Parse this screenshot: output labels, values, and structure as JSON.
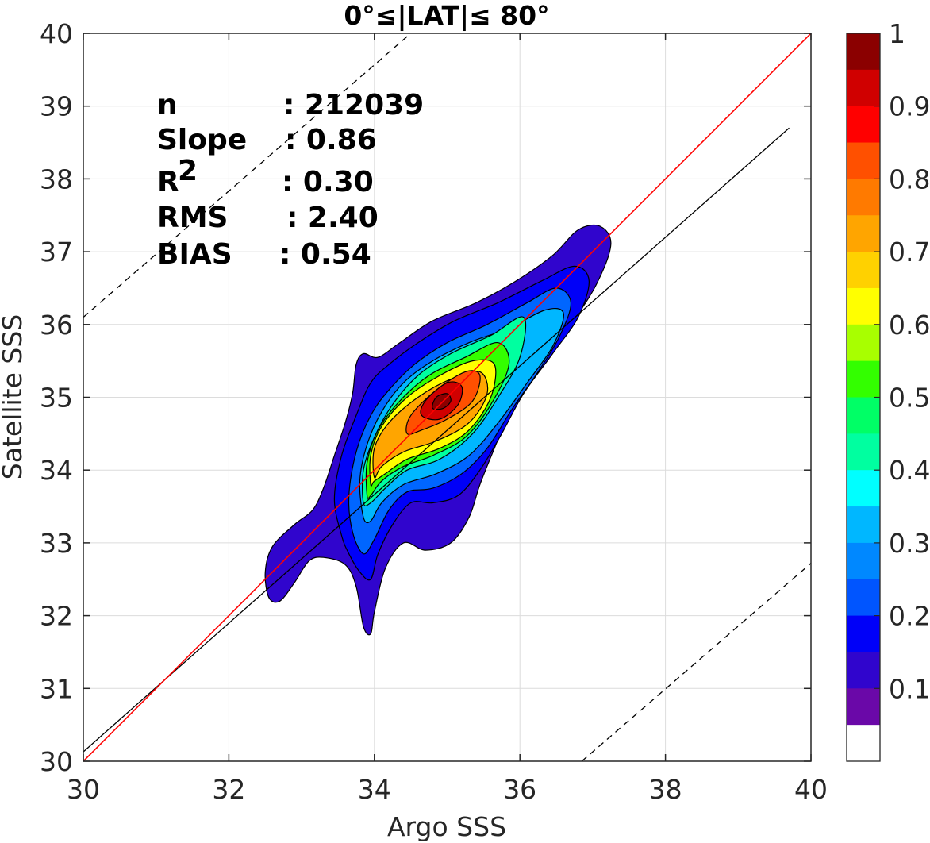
{
  "chart_data": {
    "type": "heatmap",
    "title": "0°≤|LAT|≤ 80°",
    "xlabel": "Argo SSS",
    "ylabel": "Satellite SSS",
    "xlim": [
      30,
      40
    ],
    "ylim": [
      30,
      40
    ],
    "xticks": [
      "30",
      "32",
      "34",
      "36",
      "38",
      "40"
    ],
    "yticks": [
      "30",
      "31",
      "32",
      "33",
      "34",
      "35",
      "36",
      "37",
      "38",
      "39",
      "40"
    ],
    "grid": true,
    "stats": [
      {
        "label": "n",
        "value": ": 212039"
      },
      {
        "label": "Slope",
        "value": ": 0.86"
      },
      {
        "label": "R",
        "sup": "2",
        "value": ": 0.30"
      },
      {
        "label": "RMS",
        "value": ": 2.40"
      },
      {
        "label": "BIAS",
        "value": ": 0.54"
      }
    ],
    "lines": {
      "one_to_one": {
        "color": "#ff0000",
        "points": [
          [
            30,
            30
          ],
          [
            40,
            40
          ]
        ]
      },
      "regression": {
        "color": "#000000",
        "points": [
          [
            30,
            30.13
          ],
          [
            39.7,
            38.7
          ]
        ]
      },
      "upper_dashed": {
        "color": "#000000",
        "points": [
          [
            30,
            36.1
          ],
          [
            34.5,
            40
          ]
        ]
      },
      "lower_dashed": {
        "color": "#000000",
        "points": [
          [
            36.85,
            30
          ],
          [
            40,
            32.72
          ]
        ]
      }
    },
    "density_contours": [
      {
        "level": 0.05,
        "color": "#3005cd",
        "points": [
          [
            32.7,
            32.2
          ],
          [
            32.55,
            32.25
          ],
          [
            32.5,
            32.6
          ],
          [
            32.6,
            32.95
          ],
          [
            32.9,
            33.25
          ],
          [
            33.15,
            33.45
          ],
          [
            33.3,
            33.75
          ],
          [
            33.45,
            34.2
          ],
          [
            33.6,
            34.65
          ],
          [
            33.7,
            35.05
          ],
          [
            33.75,
            35.45
          ],
          [
            33.85,
            35.6
          ],
          [
            34.05,
            35.55
          ],
          [
            34.35,
            35.75
          ],
          [
            34.8,
            36.05
          ],
          [
            35.4,
            36.3
          ],
          [
            35.95,
            36.6
          ],
          [
            36.45,
            36.95
          ],
          [
            36.8,
            37.3
          ],
          [
            37.1,
            37.35
          ],
          [
            37.25,
            37.1
          ],
          [
            37.05,
            36.55
          ],
          [
            36.7,
            36.0
          ],
          [
            36.3,
            35.45
          ],
          [
            35.9,
            34.9
          ],
          [
            35.65,
            34.3
          ],
          [
            35.45,
            33.8
          ],
          [
            35.3,
            33.35
          ],
          [
            35.05,
            33.0
          ],
          [
            34.7,
            32.9
          ],
          [
            34.4,
            33.0
          ],
          [
            34.15,
            32.65
          ],
          [
            34.0,
            32.05
          ],
          [
            33.95,
            31.75
          ],
          [
            33.85,
            31.85
          ],
          [
            33.75,
            32.4
          ],
          [
            33.6,
            32.7
          ],
          [
            33.3,
            32.8
          ],
          [
            33.1,
            32.75
          ],
          [
            32.9,
            32.45
          ]
        ]
      },
      {
        "level": 0.1,
        "color": "#0000f8",
        "points": [
          [
            33.55,
            33.1
          ],
          [
            33.45,
            33.6
          ],
          [
            33.55,
            34.2
          ],
          [
            33.75,
            34.75
          ],
          [
            33.95,
            35.2
          ],
          [
            34.2,
            35.45
          ],
          [
            34.6,
            35.75
          ],
          [
            35.1,
            36.05
          ],
          [
            35.7,
            36.3
          ],
          [
            36.3,
            36.6
          ],
          [
            36.75,
            36.8
          ],
          [
            36.95,
            36.6
          ],
          [
            36.8,
            36.1
          ],
          [
            36.45,
            35.6
          ],
          [
            36.05,
            35.05
          ],
          [
            35.75,
            34.5
          ],
          [
            35.45,
            34.0
          ],
          [
            35.15,
            33.65
          ],
          [
            34.8,
            33.55
          ],
          [
            34.5,
            33.55
          ],
          [
            34.25,
            33.25
          ],
          [
            34.05,
            32.85
          ],
          [
            33.95,
            32.5
          ],
          [
            33.8,
            32.6
          ],
          [
            33.65,
            32.85
          ]
        ]
      },
      {
        "level": 0.2,
        "color": "#0066ff",
        "points": [
          [
            33.7,
            33.15
          ],
          [
            33.65,
            33.65
          ],
          [
            33.75,
            34.25
          ],
          [
            33.95,
            34.75
          ],
          [
            34.2,
            35.1
          ],
          [
            34.55,
            35.45
          ],
          [
            35.0,
            35.75
          ],
          [
            35.55,
            36.0
          ],
          [
            36.1,
            36.3
          ],
          [
            36.5,
            36.5
          ],
          [
            36.7,
            36.3
          ],
          [
            36.55,
            35.85
          ],
          [
            36.25,
            35.35
          ],
          [
            35.9,
            34.85
          ],
          [
            35.55,
            34.3
          ],
          [
            35.2,
            33.95
          ],
          [
            34.8,
            33.75
          ],
          [
            34.45,
            33.7
          ],
          [
            34.2,
            33.45
          ],
          [
            34.0,
            33.05
          ],
          [
            33.85,
            32.85
          ]
        ]
      },
      {
        "level": 0.3,
        "color": "#00b7ff",
        "points": [
          [
            33.85,
            33.35
          ],
          [
            33.8,
            33.85
          ],
          [
            33.9,
            34.35
          ],
          [
            34.1,
            34.8
          ],
          [
            34.4,
            35.2
          ],
          [
            34.8,
            35.5
          ],
          [
            35.3,
            35.75
          ],
          [
            35.85,
            35.95
          ],
          [
            36.35,
            36.2
          ],
          [
            36.6,
            36.15
          ],
          [
            36.45,
            35.7
          ],
          [
            36.1,
            35.2
          ],
          [
            35.7,
            34.65
          ],
          [
            35.3,
            34.2
          ],
          [
            34.85,
            33.95
          ],
          [
            34.4,
            33.8
          ],
          [
            34.1,
            33.55
          ],
          [
            33.95,
            33.3
          ]
        ]
      },
      {
        "level": 0.4,
        "color": "#00ffa0",
        "points": [
          [
            33.85,
            33.55
          ],
          [
            33.85,
            34.0
          ],
          [
            34.0,
            34.45
          ],
          [
            34.25,
            34.9
          ],
          [
            34.6,
            35.3
          ],
          [
            35.05,
            35.6
          ],
          [
            35.6,
            35.85
          ],
          [
            36.05,
            36.1
          ],
          [
            36.0,
            35.55
          ],
          [
            35.7,
            35.0
          ],
          [
            35.35,
            34.5
          ],
          [
            34.9,
            34.15
          ],
          [
            34.45,
            34.0
          ],
          [
            34.15,
            33.75
          ],
          [
            33.95,
            33.55
          ]
        ]
      },
      {
        "level": 0.5,
        "color": "#33ff00",
        "points": [
          [
            33.9,
            33.65
          ],
          [
            33.9,
            34.1
          ],
          [
            34.05,
            34.55
          ],
          [
            34.35,
            34.95
          ],
          [
            34.75,
            35.3
          ],
          [
            35.25,
            35.55
          ],
          [
            35.7,
            35.75
          ],
          [
            35.85,
            35.45
          ],
          [
            35.6,
            34.9
          ],
          [
            35.25,
            34.45
          ],
          [
            34.8,
            34.2
          ],
          [
            34.4,
            34.05
          ],
          [
            34.1,
            33.85
          ],
          [
            33.95,
            33.65
          ]
        ]
      },
      {
        "level": 0.6,
        "color": "#ffff00",
        "points": [
          [
            33.95,
            33.8
          ],
          [
            33.95,
            34.2
          ],
          [
            34.1,
            34.6
          ],
          [
            34.45,
            35.0
          ],
          [
            34.9,
            35.3
          ],
          [
            35.35,
            35.5
          ],
          [
            35.65,
            35.45
          ],
          [
            35.6,
            35.0
          ],
          [
            35.3,
            34.55
          ],
          [
            34.9,
            34.3
          ],
          [
            34.45,
            34.15
          ],
          [
            34.15,
            33.95
          ],
          [
            34.0,
            33.85
          ]
        ]
      },
      {
        "level": 0.7,
        "color": "#ffa500",
        "points": [
          [
            34.0,
            33.9
          ],
          [
            34.0,
            34.3
          ],
          [
            34.2,
            34.65
          ],
          [
            34.6,
            35.0
          ],
          [
            35.05,
            35.25
          ],
          [
            35.45,
            35.35
          ],
          [
            35.55,
            35.05
          ],
          [
            35.3,
            34.65
          ],
          [
            34.85,
            34.4
          ],
          [
            34.4,
            34.25
          ],
          [
            34.1,
            34.05
          ]
        ]
      },
      {
        "level": 0.8,
        "color": "#ff5000",
        "points": [
          [
            34.45,
            34.5
          ],
          [
            34.5,
            34.75
          ],
          [
            34.85,
            35.1
          ],
          [
            35.25,
            35.35
          ],
          [
            35.45,
            35.3
          ],
          [
            35.35,
            34.95
          ],
          [
            35.0,
            34.7
          ],
          [
            34.65,
            34.55
          ]
        ]
      },
      {
        "level": 0.9,
        "color": "#d00000",
        "points": [
          [
            34.65,
            34.75
          ],
          [
            34.7,
            34.95
          ],
          [
            35.0,
            35.2
          ],
          [
            35.2,
            35.15
          ],
          [
            35.15,
            34.9
          ],
          [
            34.9,
            34.7
          ]
        ]
      },
      {
        "level": 1.0,
        "color": "#8b0000",
        "points": [
          [
            34.8,
            34.85
          ],
          [
            34.85,
            35.0
          ],
          [
            35.0,
            35.05
          ],
          [
            35.05,
            34.95
          ],
          [
            34.95,
            34.85
          ]
        ]
      }
    ],
    "colorbar": {
      "ticks": [
        "1",
        "0.9",
        "0.8",
        "0.7",
        "0.6",
        "0.5",
        "0.4",
        "0.3",
        "0.2",
        "0.1"
      ],
      "colors": [
        "#8b0000",
        "#d00000",
        "#ff0000",
        "#ff5000",
        "#ff7a00",
        "#ffa500",
        "#ffd100",
        "#ffff00",
        "#a8ff00",
        "#33ff00",
        "#00ff66",
        "#00ffa0",
        "#00ffff",
        "#00b7ff",
        "#0088ff",
        "#0055ff",
        "#0000f8",
        "#3005cd",
        "#6a08a8",
        "#ffffff"
      ]
    }
  }
}
